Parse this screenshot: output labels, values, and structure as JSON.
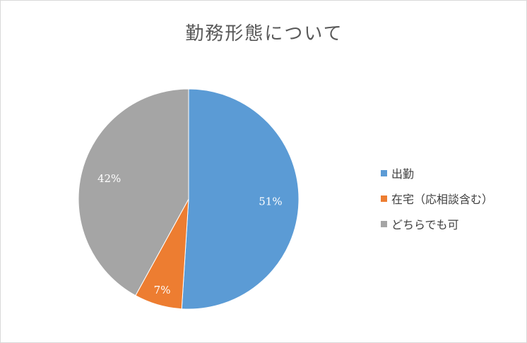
{
  "chart_data": {
    "type": "pie",
    "title": "勤務形態について",
    "categories": [
      "出勤",
      "在宅（応相談含む）",
      "どちらでも可"
    ],
    "values": [
      51,
      7,
      42
    ],
    "data_labels": [
      "51%",
      "7%",
      "42%"
    ],
    "colors": [
      "#5b9bd5",
      "#ed7d31",
      "#a5a5a5"
    ],
    "start_angle_deg": 0,
    "direction": "clockwise",
    "legend_position": "right"
  }
}
